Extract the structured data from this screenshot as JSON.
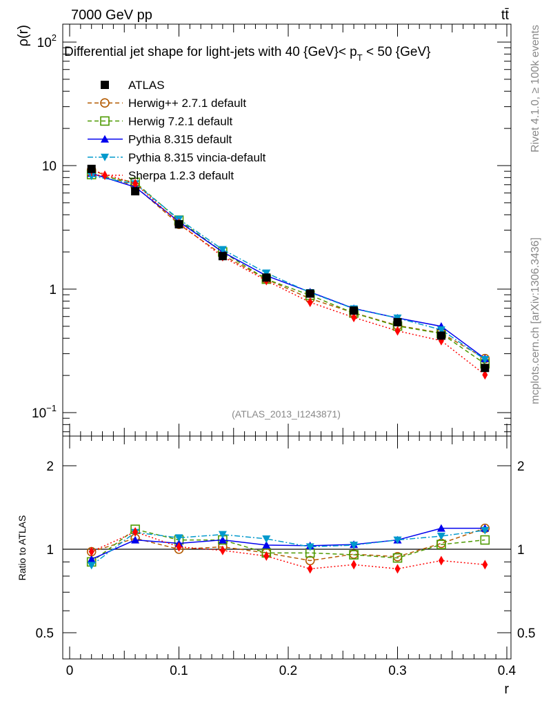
{
  "chart_data": {
    "type": "line",
    "top_left_label": "7000 GeV pp",
    "top_right_label": "tt̄",
    "title": "Differential jet shape for light-jets with 40 {GeV}< p",
    "title_sub": "T",
    "title_tail": " < 50 {GeV}",
    "ylabel": "ρ(r)",
    "ratio_ylabel": "Ratio to ATLAS",
    "xlabel": "r",
    "analysis_label": "(ATLAS_2013_I1243871)",
    "side_label_1": "Rivet 4.1.0, ≥ 100k events",
    "side_label_2": "mcplots.cern.ch [arXiv:1306.3436]",
    "xlim": [
      0,
      0.4
    ],
    "ylim": [
      0.065,
      140
    ],
    "yscale": "log",
    "ratio_ylim": [
      0.4,
      2.56
    ],
    "ratio_yscale": "log",
    "x_ticks": [
      "0",
      "0.1",
      "0.2",
      "0.3",
      "0.4"
    ],
    "x_tick_values": [
      0,
      0.1,
      0.2,
      0.3,
      0.4
    ],
    "y_ticks": [
      {
        "base": "10",
        "exp": "2",
        "value": 100
      },
      {
        "base": "10",
        "exp": "",
        "value": 10
      },
      {
        "base": "1",
        "exp": "",
        "value": 1
      },
      {
        "base": "10",
        "exp": "−1",
        "value": 0.1
      }
    ],
    "ratio_ticks": [
      {
        "label": "2",
        "value": 2
      },
      {
        "label": "1",
        "value": 1
      },
      {
        "label": "0.5",
        "value": 0.5
      }
    ],
    "legend_placement": "top-left",
    "x": [
      0.02,
      0.06,
      0.1,
      0.14,
      0.18,
      0.22,
      0.26,
      0.3,
      0.34,
      0.38
    ],
    "reference": {
      "name": "ATLAS",
      "values": [
        9.4,
        6.2,
        3.35,
        1.85,
        1.24,
        0.92,
        0.67,
        0.54,
        0.42,
        0.23
      ],
      "color": "#000000",
      "marker": "square"
    },
    "series": [
      {
        "name": "Herwig++ 2.7.1 default",
        "color": "#b35a00",
        "marker": "circle-open",
        "dash": "6,4",
        "ratio": [
          0.98,
          1.095,
          1.0,
          1.02,
          0.97,
          0.91,
          0.96,
          0.94,
          1.05,
          1.19
        ]
      },
      {
        "name": "Herwig 7.2.1 default",
        "color": "#4c9900",
        "marker": "square-open",
        "dash": "6,4",
        "ratio": [
          0.9,
          1.18,
          1.08,
          1.08,
          0.97,
          0.97,
          0.955,
          0.93,
          1.04,
          1.08
        ]
      },
      {
        "name": "Pythia 8.315 default",
        "color": "#0000ee",
        "marker": "triangle-up",
        "dash": "",
        "ratio": [
          0.92,
          1.08,
          1.05,
          1.08,
          1.035,
          1.03,
          1.04,
          1.08,
          1.19,
          1.19
        ]
      },
      {
        "name": "Pythia 8.315 vincia-default",
        "color": "#0099cc",
        "marker": "triangle-down",
        "dash": "8,3,2,3",
        "ratio": [
          0.875,
          1.15,
          1.1,
          1.13,
          1.09,
          1.02,
          1.035,
          1.08,
          1.115,
          1.17
        ]
      },
      {
        "name": "Sherpa 1.2.3 default",
        "color": "#ff0000",
        "marker": "diamond",
        "dash": "2,3",
        "ratio": [
          0.98,
          1.155,
          1.02,
          0.99,
          0.945,
          0.85,
          0.88,
          0.85,
          0.91,
          0.88
        ]
      }
    ]
  }
}
